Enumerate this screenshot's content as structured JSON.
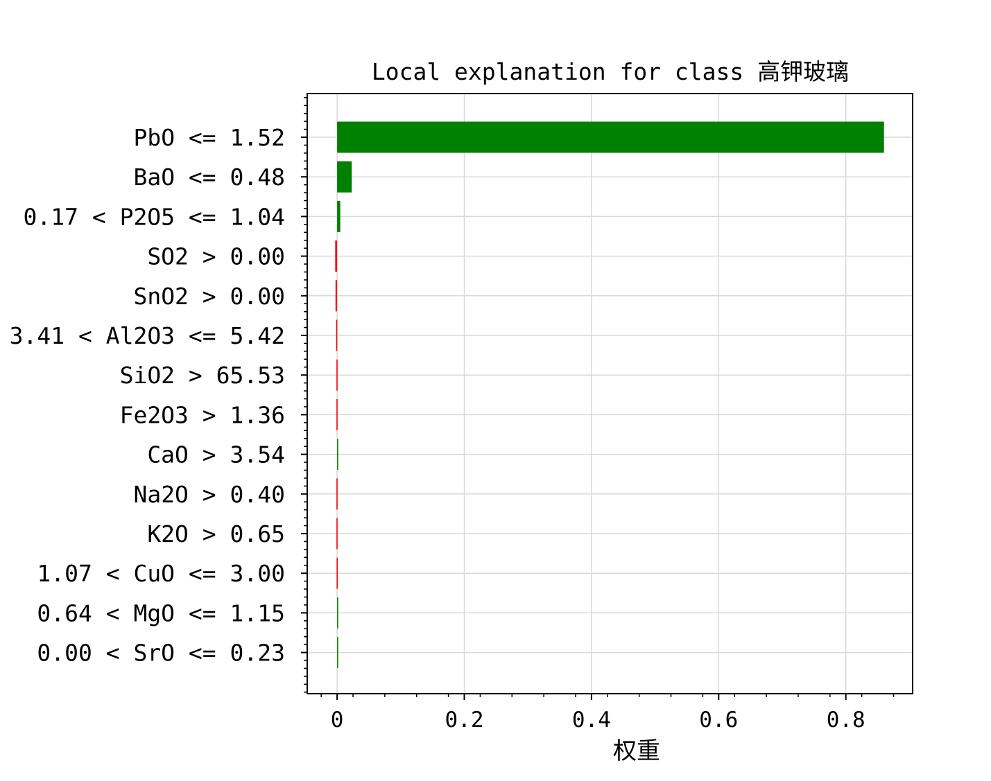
{
  "chart_data": {
    "type": "bar",
    "orientation": "horizontal",
    "title": "Local explanation for class 高钾玻璃",
    "xlabel": "权重",
    "ylabel": "",
    "xlim": [
      -0.047,
      0.905
    ],
    "xticks": [
      {
        "value": 0,
        "label": "0"
      },
      {
        "value": 0.2,
        "label": "0.2"
      },
      {
        "value": 0.4,
        "label": "0.4"
      },
      {
        "value": 0.6,
        "label": "0.6"
      },
      {
        "value": 0.8,
        "label": "0.8"
      }
    ],
    "grid": true,
    "categories": [
      "PbO <= 1.52",
      "BaO <= 0.48",
      "0.17 < P2O5 <= 1.04",
      "SO2 > 0.00",
      "SnO2 > 0.00",
      "3.41 < Al2O3 <= 5.42",
      "SiO2 > 65.53",
      "Fe2O3 > 1.36",
      "CaO > 3.54",
      "Na2O > 0.40",
      "K2O > 0.65",
      "1.07 < CuO <= 3.00",
      "0.64 < MgO <= 1.15",
      "0.00 < SrO <= 0.23"
    ],
    "values": [
      0.86,
      0.023,
      0.005,
      -0.003,
      -0.0025,
      -0.0015,
      -0.001,
      -0.001,
      0.0015,
      -0.001,
      -0.001,
      -0.0008,
      0.0005,
      0.0003
    ],
    "colors": {
      "positive": "#008000",
      "negative": "#ff0000"
    }
  }
}
